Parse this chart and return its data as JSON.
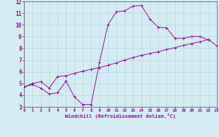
{
  "xlabel": "Windchill (Refroidissement éolien,°C)",
  "background_color": "#d4ecf2",
  "line_color": "#990099",
  "grid_color": "#b0d8e0",
  "xlim": [
    0,
    23
  ],
  "ylim": [
    3,
    12
  ],
  "xticks": [
    0,
    1,
    2,
    3,
    4,
    5,
    6,
    7,
    8,
    9,
    10,
    11,
    12,
    13,
    14,
    15,
    16,
    17,
    18,
    19,
    20,
    21,
    22,
    23
  ],
  "yticks": [
    3,
    4,
    5,
    6,
    7,
    8,
    9,
    10,
    11,
    12
  ],
  "curve1_x": [
    0,
    1,
    2,
    3,
    4,
    5,
    6,
    7,
    8,
    9,
    10,
    11,
    12,
    13,
    14,
    15,
    16,
    17,
    18,
    19,
    20,
    21,
    22
  ],
  "curve1_y": [
    4.7,
    4.9,
    4.6,
    4.1,
    4.2,
    5.2,
    3.85,
    3.2,
    3.2,
    6.8,
    10.0,
    11.1,
    11.2,
    11.6,
    11.65,
    10.5,
    9.8,
    9.75,
    8.85,
    8.85,
    9.0,
    9.0,
    8.7
  ],
  "curve2_x": [
    0,
    1,
    2,
    3,
    4,
    5,
    6,
    7,
    8,
    9,
    10,
    11,
    12,
    13,
    14,
    15,
    16,
    17,
    18,
    19,
    20,
    21,
    22,
    23
  ],
  "curve2_y": [
    4.7,
    5.0,
    5.15,
    4.6,
    5.6,
    5.65,
    5.85,
    6.05,
    6.2,
    6.35,
    6.55,
    6.75,
    7.0,
    7.2,
    7.4,
    7.55,
    7.7,
    7.9,
    8.05,
    8.25,
    8.4,
    8.55,
    8.75,
    8.2
  ]
}
